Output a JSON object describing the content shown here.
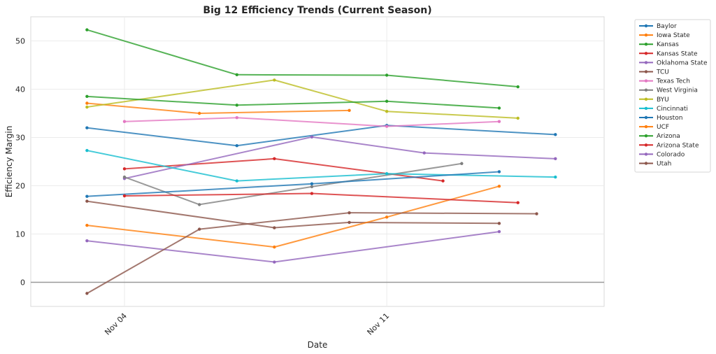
{
  "chart_data": {
    "type": "line",
    "title": "Big 12 Efficiency Trends (Current Season)",
    "xlabel": "Date",
    "ylabel": "Efficiency Margin",
    "x_unit": "days since Nov 04",
    "xlim": [
      -2.5,
      12.8
    ],
    "ylim": [
      -5,
      55
    ],
    "yticks": [
      0,
      10,
      20,
      30,
      40,
      50
    ],
    "xticks": [
      {
        "value": 0,
        "label": "Nov 04"
      },
      {
        "value": 7,
        "label": "Nov 11"
      }
    ],
    "zero_line": true,
    "grid": true,
    "legend_position": "outside-right",
    "series": [
      {
        "name": "Baylor",
        "color": "#1f77b4",
        "x": [
          -1,
          3,
          7,
          11.5
        ],
        "y": [
          32,
          28.3,
          32.5,
          30.6
        ]
      },
      {
        "name": "Iowa State",
        "color": "#ff7f0e",
        "x": [
          -1,
          2,
          6
        ],
        "y": [
          37.1,
          35,
          35.6
        ]
      },
      {
        "name": "Kansas",
        "color": "#2ca02c",
        "x": [
          -1,
          3,
          7,
          10.5
        ],
        "y": [
          52.3,
          43,
          42.9,
          40.5
        ]
      },
      {
        "name": "Kansas State",
        "color": "#d62728",
        "x": [
          0,
          4,
          8.5
        ],
        "y": [
          23.5,
          25.6,
          21
        ]
      },
      {
        "name": "Oklahoma State",
        "color": "#9467bd",
        "x": [
          0,
          5,
          8,
          11.5
        ],
        "y": [
          21.5,
          30.1,
          26.8,
          25.6
        ]
      },
      {
        "name": "TCU",
        "color": "#8c564b",
        "x": [
          -1,
          4,
          6,
          10
        ],
        "y": [
          16.8,
          11.3,
          12.4,
          12.2
        ]
      },
      {
        "name": "Texas Tech",
        "color": "#e377c2",
        "x": [
          0,
          3,
          7,
          10
        ],
        "y": [
          33.3,
          34.1,
          32.3,
          33.3
        ]
      },
      {
        "name": "West Virginia",
        "color": "#7f7f7f",
        "x": [
          0,
          2,
          5,
          9
        ],
        "y": [
          21.8,
          16.1,
          19.8,
          24.6
        ]
      },
      {
        "name": "BYU",
        "color": "#bcbd22",
        "x": [
          -1,
          4,
          7,
          10.5
        ],
        "y": [
          36.3,
          41.9,
          35.4,
          34
        ]
      },
      {
        "name": "Cincinnati",
        "color": "#17becf",
        "x": [
          -1,
          3,
          7,
          11.5
        ],
        "y": [
          27.3,
          21,
          22.5,
          21.8
        ]
      },
      {
        "name": "Houston",
        "color": "#1f77b4",
        "x": [
          -1,
          5,
          10
        ],
        "y": [
          17.8,
          20.4,
          22.9
        ]
      },
      {
        "name": "UCF",
        "color": "#ff7f0e",
        "x": [
          -1,
          4,
          7,
          10
        ],
        "y": [
          11.8,
          7.3,
          13.5,
          19.9
        ]
      },
      {
        "name": "Arizona",
        "color": "#2ca02c",
        "x": [
          -1,
          3,
          7,
          10
        ],
        "y": [
          38.5,
          36.7,
          37.5,
          36.1
        ]
      },
      {
        "name": "Arizona State",
        "color": "#d62728",
        "x": [
          0,
          5,
          10.5
        ],
        "y": [
          17.9,
          18.4,
          16.5
        ]
      },
      {
        "name": "Colorado",
        "color": "#9467bd",
        "x": [
          -1,
          4,
          10
        ],
        "y": [
          8.6,
          4.2,
          10.5
        ]
      },
      {
        "name": "Utah",
        "color": "#8c564b",
        "x": [
          -1,
          2,
          6,
          11
        ],
        "y": [
          -2.3,
          11,
          14.4,
          14.2
        ]
      }
    ]
  }
}
